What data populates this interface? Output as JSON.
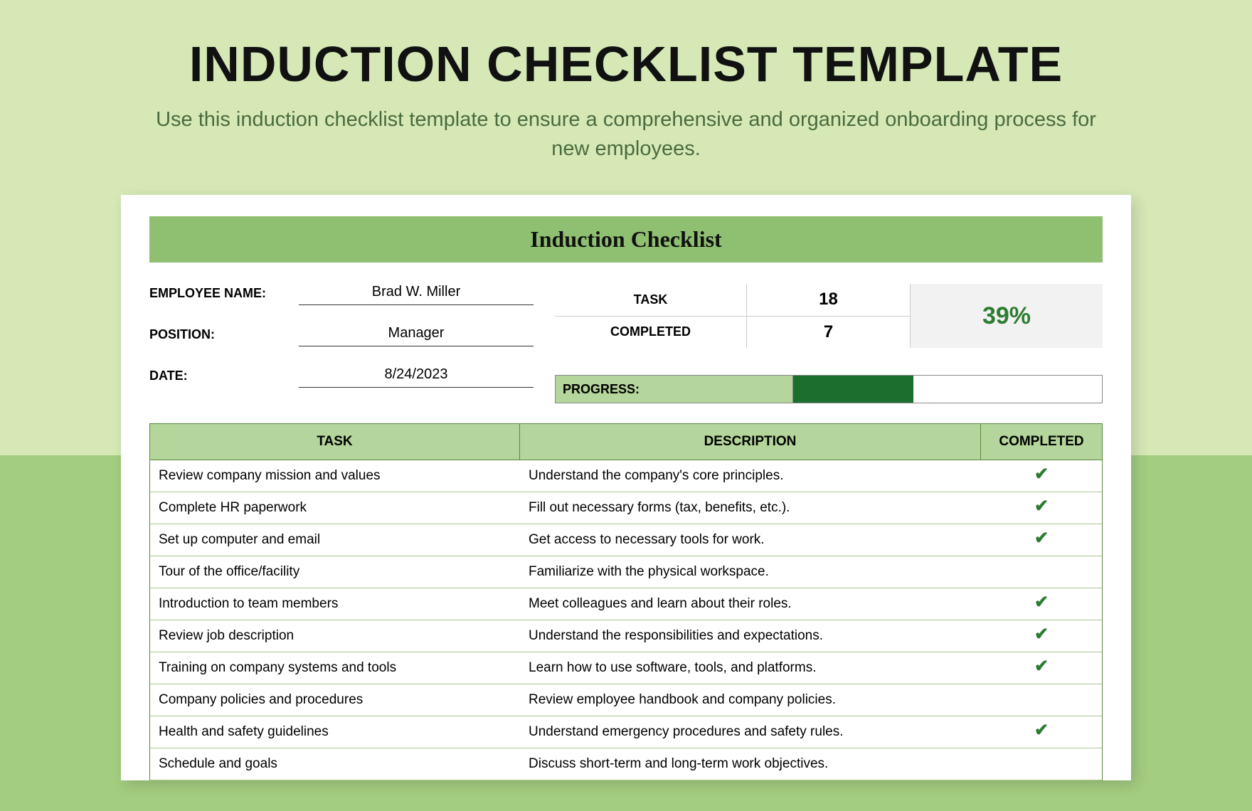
{
  "colors": {
    "bg_top": "#d5e8b6",
    "bg_bottom": "#a3cd80",
    "header_bar": "#8fc071",
    "table_header": "#b4d59b",
    "progress_fill": "#1b6e2e",
    "check_color": "#2e7d32",
    "border_green": "#5a8a3c"
  },
  "page": {
    "title": "INDUCTION CHECKLIST TEMPLATE",
    "subtitle": "Use this induction checklist template to ensure a comprehensive and organized onboarding process for new employees."
  },
  "doc": {
    "title": "Induction Checklist",
    "fields": {
      "employee_name_label": "EMPLOYEE NAME:",
      "employee_name_value": "Brad W. Miller",
      "position_label": "POSITION:",
      "position_value": "Manager",
      "date_label": "DATE:",
      "date_value": "8/24/2023"
    },
    "stats": {
      "task_label": "TASK",
      "task_value": "18",
      "completed_label": "COMPLETED",
      "completed_value": "7",
      "percent": "39%",
      "progress_label": "PROGRESS:",
      "progress_pct": 39
    },
    "table": {
      "headers": {
        "task": "TASK",
        "description": "DESCRIPTION",
        "completed": "COMPLETED"
      },
      "rows": [
        {
          "task": "Review company mission and values",
          "description": "Understand the company's core principles.",
          "completed": true
        },
        {
          "task": "Complete HR paperwork",
          "description": "Fill out necessary forms (tax, benefits, etc.).",
          "completed": true
        },
        {
          "task": "Set up computer and email",
          "description": "Get access to necessary tools for work.",
          "completed": true
        },
        {
          "task": "Tour of the office/facility",
          "description": "Familiarize with the physical workspace.",
          "completed": false
        },
        {
          "task": "Introduction to team members",
          "description": "Meet colleagues and learn about their roles.",
          "completed": true
        },
        {
          "task": "Review job description",
          "description": "Understand the responsibilities and expectations.",
          "completed": true
        },
        {
          "task": "Training on company systems and tools",
          "description": "Learn how to use software, tools, and platforms.",
          "completed": true
        },
        {
          "task": "Company policies and procedures",
          "description": "Review employee handbook and company policies.",
          "completed": false
        },
        {
          "task": "Health and safety guidelines",
          "description": "Understand emergency procedures and safety rules.",
          "completed": true
        },
        {
          "task": "Schedule and goals",
          "description": "Discuss short-term and long-term work objectives.",
          "completed": false
        }
      ]
    }
  }
}
